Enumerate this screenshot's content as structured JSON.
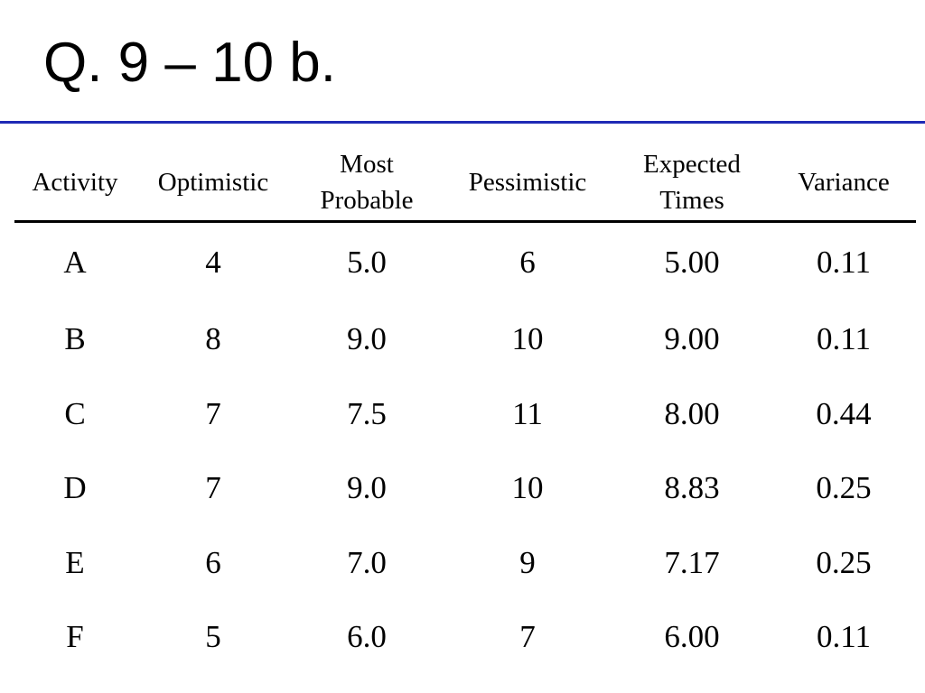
{
  "slide": {
    "title": "Q. 9 – 10 b."
  },
  "table": {
    "headers": [
      {
        "lines": [
          "Activity"
        ]
      },
      {
        "lines": [
          "Optimistic"
        ]
      },
      {
        "lines": [
          "Most",
          "Probable"
        ]
      },
      {
        "lines": [
          "Pessimistic"
        ]
      },
      {
        "lines": [
          "Expected",
          "Times"
        ]
      },
      {
        "lines": [
          "Variance"
        ]
      }
    ],
    "rows": [
      [
        "A",
        "4",
        "5.0",
        "6",
        "5.00",
        "0.11"
      ],
      [
        "B",
        "8",
        "9.0",
        "10",
        "9.00",
        "0.11"
      ],
      [
        "C",
        "7",
        "7.5",
        "11",
        "8.00",
        "0.44"
      ],
      [
        "D",
        "7",
        "9.0",
        "10",
        "8.83",
        "0.25"
      ],
      [
        "E",
        "6",
        "7.0",
        "9",
        "7.17",
        "0.25"
      ],
      [
        "F",
        "5",
        "6.0",
        "7",
        "6.00",
        "0.11"
      ]
    ]
  },
  "colors": {
    "title_rule": "#1f2ab5",
    "text": "#000000",
    "header_rule": "#000000"
  }
}
